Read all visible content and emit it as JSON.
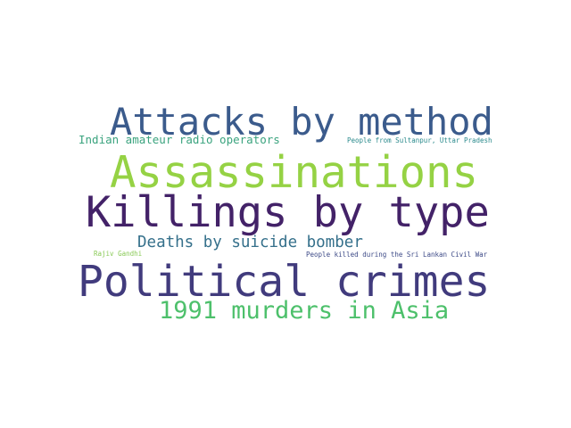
{
  "words": {
    "attacks_by_method": {
      "text": "Attacks by method",
      "color": "#3b5b8c"
    },
    "indian_radio": {
      "text": "Indian amateur radio operators",
      "color": "#3aa37e"
    },
    "sultanpur": {
      "text": "People from Sultanpur, Uttar Pradesh",
      "color": "#2a8a8c"
    },
    "assassinations": {
      "text": "Assassinations",
      "color": "#95d244"
    },
    "killings_by_type": {
      "text": "Killings by type",
      "color": "#432268"
    },
    "suicide_bomber": {
      "text": "Deaths by suicide bomber",
      "color": "#35708b"
    },
    "rajiv_gandhi": {
      "text": "Rajiv Gandhi",
      "color": "#88c955"
    },
    "sri_lanka": {
      "text": "People killed during the Sri Lankan Civil War",
      "color": "#3d4a87"
    },
    "political_crimes": {
      "text": "Political crimes",
      "color": "#413b7d"
    },
    "murders_1991": {
      "text": "1991 murders in Asia",
      "color": "#4dc06b"
    }
  }
}
